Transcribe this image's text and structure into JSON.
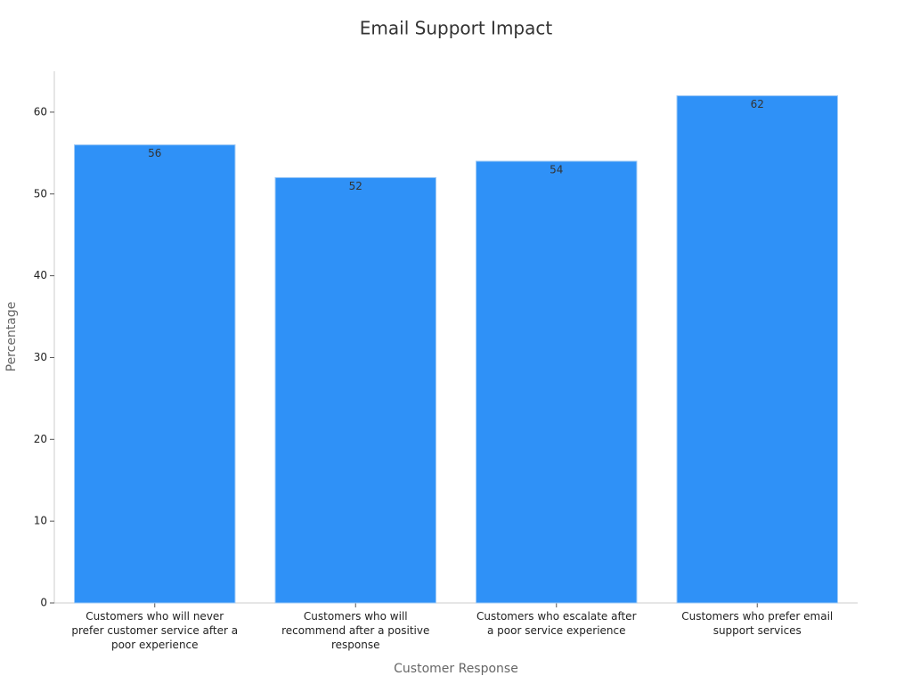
{
  "chart_data": {
    "type": "bar",
    "title": "Email Support Impact",
    "x_label": "Customer Response",
    "y_label": "Percentage",
    "categories": [
      "Customers who will never prefer customer service after a poor experience",
      "Customers who will recommend after a positive response",
      "Customers who escalate after a poor service experience",
      "Customers who prefer email support services"
    ],
    "values": [
      56,
      52,
      54,
      62
    ],
    "color": "#2f91f7",
    "ylim": [
      0,
      65
    ],
    "yticks": [
      0,
      10,
      20,
      30,
      40,
      50,
      60
    ],
    "grid": false
  }
}
